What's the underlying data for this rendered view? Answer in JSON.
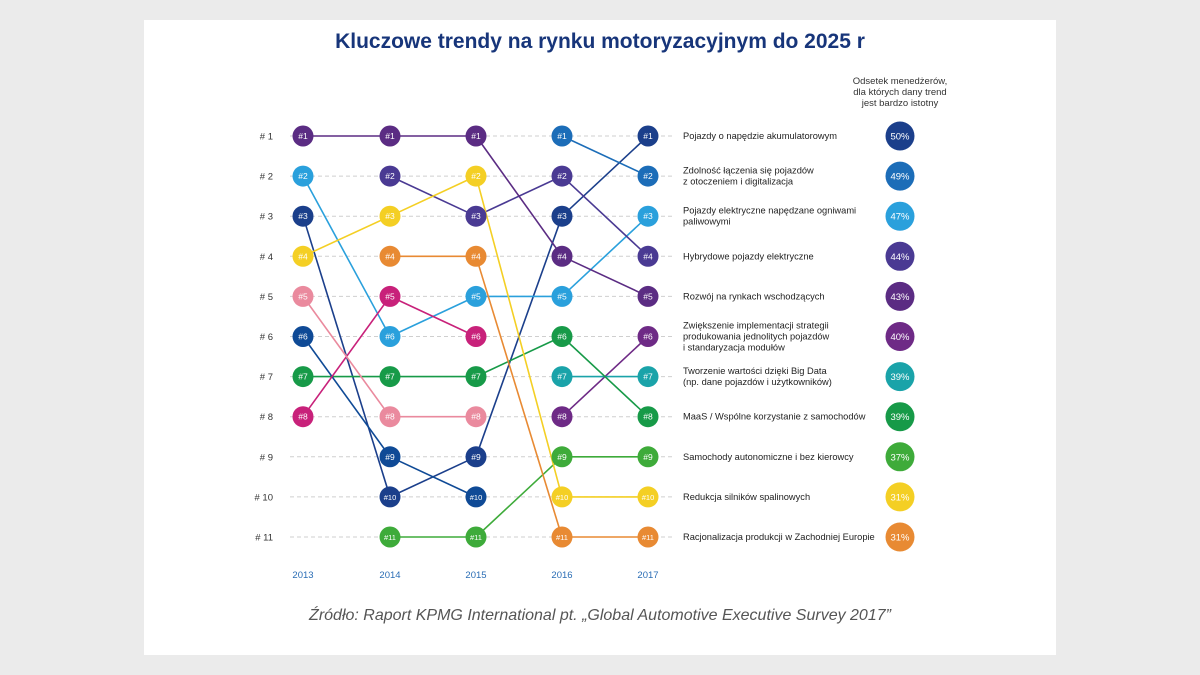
{
  "title": "Kluczowe trendy na rynku motoryzacyjnym do 2025 r",
  "source": "Źródło: Raport KPMG International pt. „Global Automotive Executive Survey 2017”",
  "chart_data": {
    "type": "bump",
    "years": [
      "2013",
      "2014",
      "2015",
      "2016",
      "2017"
    ],
    "rank_labels": [
      "# 1",
      "# 2",
      "# 3",
      "# 4",
      "# 5",
      "# 6",
      "# 7",
      "# 8",
      "# 9",
      "# 10",
      "# 11"
    ],
    "marker_labels": [
      "#1",
      "#2",
      "#3",
      "#4",
      "#5",
      "#6",
      "#7",
      "#8",
      "#9",
      "#10",
      "#11"
    ],
    "pct_header": [
      "Odsetek menedżerów,",
      "dla których dany trend",
      "jest bardzo istotny"
    ],
    "trends": [
      {
        "name": [
          "Pojazdy o napędzie akumulatorowym"
        ],
        "color": "#1b3f8b",
        "ranks": [
          3,
          10,
          9,
          3,
          1
        ],
        "pct": "50%"
      },
      {
        "name": [
          "Zdolność łączenia się pojazdów",
          "z otoczeniem i digitalizacja"
        ],
        "color": "#1c6db8",
        "ranks": [
          null,
          null,
          null,
          1,
          2
        ],
        "pct": "49%"
      },
      {
        "name": [
          "Pojazdy elektryczne napędzane ogniwami",
          "paliwowymi"
        ],
        "color": "#2aa0dc",
        "ranks": [
          2,
          6,
          5,
          5,
          3
        ],
        "pct": "47%"
      },
      {
        "name": [
          "Hybrydowe pojazdy elektryczne"
        ],
        "color": "#4a3a93",
        "ranks": [
          null,
          2,
          3,
          2,
          4
        ],
        "pct": "44%"
      },
      {
        "name": [
          "Rozwój na rynkach wschodzących"
        ],
        "color": "#5b2c83",
        "ranks": [
          1,
          1,
          1,
          4,
          5
        ],
        "pct": "43%"
      },
      {
        "name": [
          "Zwiększenie implementacji strategii",
          "produkowania jednolitych pojazdów",
          "i standaryzacja modułów"
        ],
        "color": "#6e2a86",
        "ranks": [
          null,
          null,
          null,
          8,
          6
        ],
        "pct": "40%"
      },
      {
        "name": [
          "Tworzenie wartości dzięki Big Data",
          "(np. dane pojazdów i użytkowników)"
        ],
        "color": "#1aa3a9",
        "ranks": [
          null,
          null,
          null,
          7,
          7
        ],
        "pct": "39%"
      },
      {
        "name": [
          "MaaS / Wspólne korzystanie z samochodów"
        ],
        "color": "#179a48",
        "ranks": [
          7,
          7,
          7,
          6,
          8
        ],
        "pct": "39%"
      },
      {
        "name": [
          "Samochody autonomiczne i bez kierowcy"
        ],
        "color": "#3eab3a",
        "ranks": [
          null,
          11,
          11,
          9,
          9
        ],
        "pct": "37%"
      },
      {
        "name": [
          "Redukcja silników spalinowych"
        ],
        "color": "#f4cf24",
        "ranks": [
          4,
          3,
          2,
          10,
          10
        ],
        "pct": "31%"
      },
      {
        "name": [
          "Racjonalizacja produkcji w Zachodniej Europie"
        ],
        "color": "#e88a33",
        "ranks": [
          null,
          4,
          4,
          11,
          11
        ],
        "pct": "31%"
      }
    ],
    "dropped_trends": [
      {
        "color": "#0f4a96",
        "ranks": [
          6,
          9,
          10,
          null,
          null
        ]
      },
      {
        "color": "#c8217a",
        "ranks": [
          8,
          5,
          6,
          null,
          null
        ]
      },
      {
        "color": "#ea8a9e",
        "ranks": [
          5,
          8,
          8,
          null,
          null
        ]
      }
    ]
  }
}
